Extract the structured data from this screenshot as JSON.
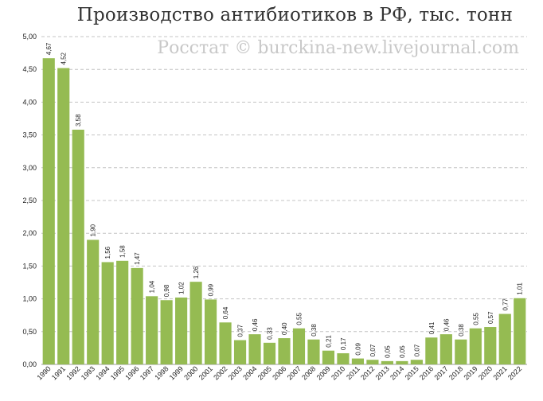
{
  "header": {
    "title": "Производство антибиотиков в РФ, тыс. тонн",
    "watermark": "Росстат © burckina-new.livejournal.com"
  },
  "chart_data": {
    "type": "bar",
    "title": "Производство антибиотиков в РФ, тыс. тонн",
    "xlabel": "",
    "ylabel": "",
    "ylim": [
      0,
      5
    ],
    "yticks": [
      "0,00",
      "0,50",
      "1,00",
      "1,50",
      "2,00",
      "2,50",
      "3,00",
      "3,50",
      "4,00",
      "4,50",
      "5,00"
    ],
    "grid": true,
    "legend": "none",
    "bar_color": "#95bb52",
    "categories": [
      "1990",
      "1991",
      "1992",
      "1993",
      "1994",
      "1995",
      "1996",
      "1997",
      "1998",
      "1999",
      "2000",
      "2001",
      "2002",
      "2003",
      "2004",
      "2005",
      "2006",
      "2007",
      "2008",
      "2009",
      "2010",
      "2011",
      "2012",
      "2013",
      "2014",
      "2015",
      "2016",
      "2017",
      "2018",
      "2019",
      "2020",
      "2021",
      "2022"
    ],
    "values": [
      4.67,
      4.52,
      3.58,
      1.9,
      1.56,
      1.58,
      1.47,
      1.04,
      0.98,
      1.02,
      1.26,
      0.99,
      0.64,
      0.37,
      0.46,
      0.33,
      0.4,
      0.55,
      0.38,
      0.21,
      0.17,
      0.09,
      0.07,
      0.05,
      0.05,
      0.07,
      0.41,
      0.46,
      0.38,
      0.55,
      0.57,
      0.77,
      1.01
    ],
    "data_labels": [
      "4,67",
      "4,52",
      "3,58",
      "1,90",
      "1,56",
      "1,58",
      "1,47",
      "1,04",
      "0,98",
      "1,02",
      "1,26",
      "0,99",
      "0,64",
      "0,37",
      "0,46",
      "0,33",
      "0,40",
      "0,55",
      "0,38",
      "0,21",
      "0,17",
      "0,09",
      "0,07",
      "0,05",
      "0,05",
      "0,07",
      "0,41",
      "0,46",
      "0,38",
      "0,55",
      "0,57",
      "0,77",
      "1,01"
    ]
  }
}
